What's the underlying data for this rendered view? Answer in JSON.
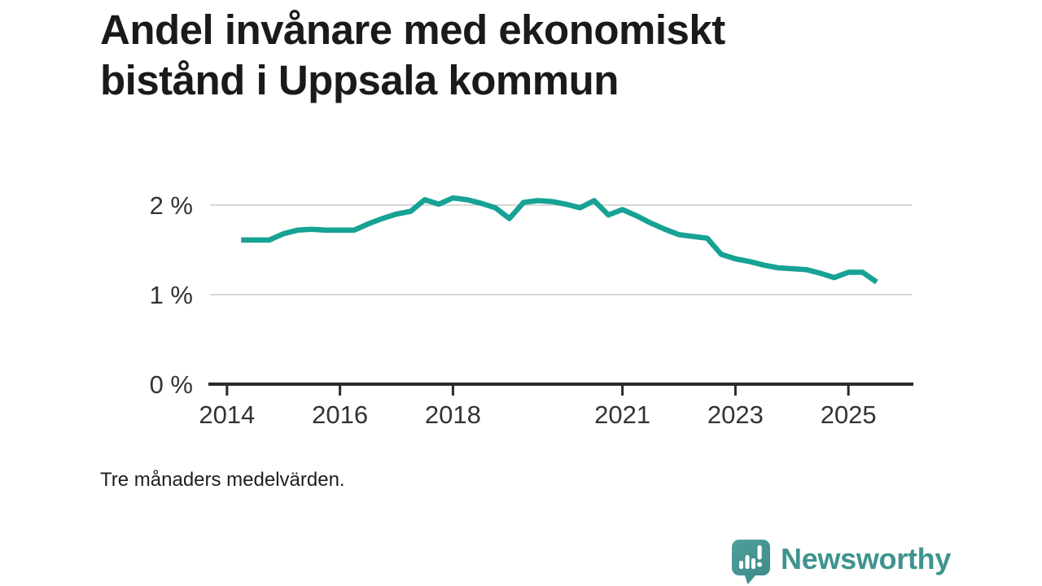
{
  "chart": {
    "title": "Andel invånare med ekonomiskt bistånd i Uppsala kommun",
    "note": "Tre månaders medelvärden."
  },
  "branding": {
    "logo_text": "Newsworthy"
  },
  "colors": {
    "background": "#ffffff",
    "line": "#16a294",
    "grid": "#d8d8d8",
    "axis": "#2b2b2b",
    "tick_label": "#333333",
    "logo_bubble": "#4a9a97",
    "logo_bubble_dark": "#3d8d8b",
    "logo_text": "#3e948f"
  },
  "chart_data": {
    "type": "line",
    "title": "Andel invånare med ekonomiskt bistånd i Uppsala kommun",
    "note": "Tre månaders medelvärden.",
    "xlabel": "",
    "ylabel": "",
    "unit": "%",
    "grid": "horizontal-only",
    "legend": "none",
    "xlim": [
      2013.7,
      2026.15
    ],
    "ylim": [
      0,
      2.2
    ],
    "xticks": [
      {
        "value": 2014,
        "label": "2014"
      },
      {
        "value": 2016,
        "label": "2016"
      },
      {
        "value": 2018,
        "label": "2018"
      },
      {
        "value": 2021,
        "label": "2021"
      },
      {
        "value": 2023,
        "label": "2023"
      },
      {
        "value": 2025,
        "label": "2025"
      }
    ],
    "yticks": [
      {
        "value": 0,
        "label": "0 %"
      },
      {
        "value": 1,
        "label": "1 %"
      },
      {
        "value": 2,
        "label": "2 %"
      }
    ],
    "series": [
      {
        "name": "Andel invånare med ekonomiskt bistånd",
        "x_start": 2014.25,
        "x_step": 0.25,
        "color": "#16a294",
        "values": [
          1.61,
          1.61,
          1.61,
          1.68,
          1.72,
          1.73,
          1.72,
          1.72,
          1.72,
          1.79,
          1.85,
          1.9,
          1.93,
          2.06,
          2.01,
          2.08,
          2.06,
          2.02,
          1.97,
          1.85,
          2.03,
          2.05,
          2.04,
          2.01,
          1.97,
          2.05,
          1.89,
          1.95,
          1.88,
          1.8,
          1.73,
          1.67,
          1.65,
          1.63,
          1.45,
          1.4,
          1.37,
          1.33,
          1.3,
          1.29,
          1.28,
          1.24,
          1.19,
          1.25,
          1.25,
          1.14
        ]
      }
    ]
  }
}
